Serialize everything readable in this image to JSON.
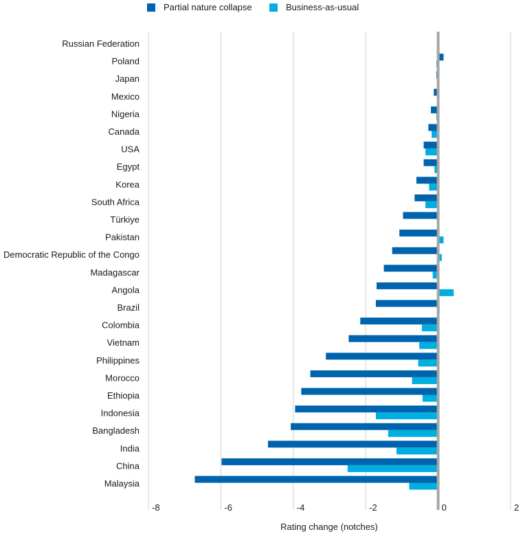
{
  "chart_data": {
    "type": "bar",
    "orientation": "horizontal",
    "title": "",
    "xlabel": "Rating change (notches)",
    "ylabel": "",
    "xlim": [
      -8,
      2
    ],
    "xticks": [
      -8,
      -6,
      -4,
      -2,
      0,
      2
    ],
    "grid": true,
    "legend_position": "top",
    "categories": [
      "Russian Federation",
      "Poland",
      "Japan",
      "Mexico",
      "Nigeria",
      "Canada",
      "USA",
      "Egypt",
      "Korea",
      "South Africa",
      "Türkiye",
      "Pakistan",
      "Democratic Republic of the Congo",
      "Madagascar",
      "Angola",
      "Brazil",
      "Colombia",
      "Vietnam",
      "Philippines",
      "Morocco",
      "Ethiopia",
      "Indonesia",
      "Bangladesh",
      "India",
      "China",
      "Malaysia"
    ],
    "series": [
      {
        "name": "Partial nature collapse",
        "color": "#0063ad",
        "values": [
          -0.02,
          0.15,
          -0.05,
          -0.12,
          -0.2,
          -0.27,
          -0.4,
          -0.4,
          -0.6,
          -0.65,
          -0.97,
          -1.07,
          -1.27,
          -1.5,
          -1.7,
          -1.72,
          -2.15,
          -2.47,
          -3.1,
          -3.53,
          -3.78,
          -3.95,
          -4.07,
          -4.7,
          -5.98,
          -6.72
        ]
      },
      {
        "name": "Business-as-usual",
        "color": "#00aee0",
        "values": [
          -0.02,
          -0.05,
          -0.01,
          -0.02,
          -0.05,
          -0.18,
          -0.35,
          -0.1,
          -0.25,
          -0.35,
          -0.01,
          0.15,
          0.1,
          -0.15,
          0.43,
          0.04,
          -0.45,
          -0.52,
          -0.55,
          -0.72,
          -0.43,
          -1.72,
          -1.38,
          -1.15,
          -2.5,
          -0.8
        ]
      }
    ]
  }
}
